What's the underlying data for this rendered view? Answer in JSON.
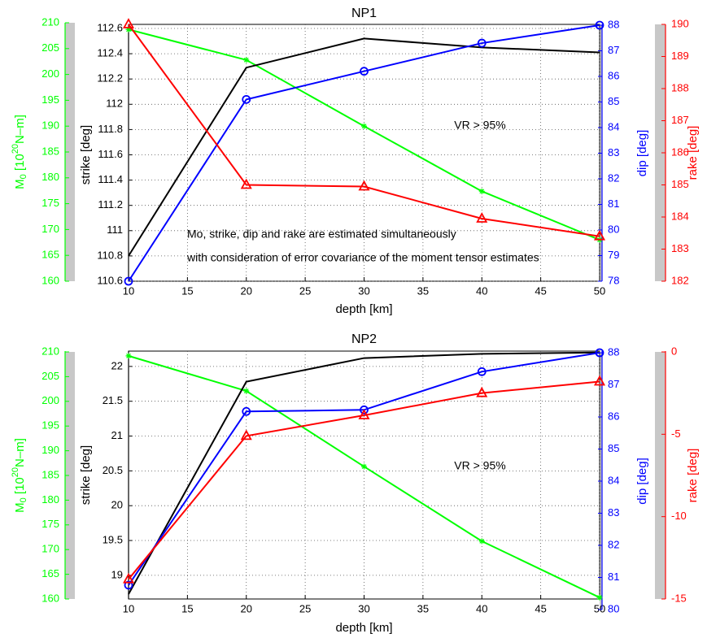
{
  "chart_data": [
    {
      "type": "line",
      "title": "NP1",
      "xlabel": "depth [km]",
      "x": [
        10,
        20,
        30,
        40,
        50
      ],
      "xlim": [
        10,
        50
      ],
      "xticks": [
        10,
        15,
        20,
        25,
        30,
        35,
        40,
        45,
        50
      ],
      "grid": true,
      "axes": [
        {
          "label": {
            "base": "M",
            "sub": "0",
            "mid": " [10",
            "sup": "20",
            "end": "N–m]"
          },
          "color": "#00ff00",
          "ylim": [
            160,
            210
          ],
          "yticks": [
            160,
            165,
            170,
            175,
            180,
            185,
            190,
            195,
            200,
            205,
            210
          ]
        },
        {
          "label": "strike [deg]",
          "color": "#000000",
          "ylim": [
            110.6,
            112.6
          ],
          "yticks": [
            110.6,
            110.8,
            111,
            111.2,
            111.4,
            111.6,
            111.8,
            112,
            112.2,
            112.4,
            112.6
          ]
        },
        {
          "label": "dip [deg]",
          "color": "#0000ff",
          "ylim": [
            78,
            88
          ],
          "yticks": [
            78,
            79,
            80,
            81,
            82,
            83,
            84,
            85,
            86,
            87,
            88
          ]
        },
        {
          "label": "rake [deg]",
          "color": "#ff0000",
          "ylim": [
            182,
            190
          ],
          "yticks": [
            182,
            183,
            184,
            185,
            186,
            187,
            188,
            189,
            190
          ]
        }
      ],
      "series": [
        {
          "axis": 0,
          "color": "#00ff00",
          "marker": "star",
          "values": [
            208.7,
            202.8,
            190.0,
            177.4,
            168.0
          ]
        },
        {
          "axis": 1,
          "color": "#000000",
          "marker": "none",
          "values": [
            110.8,
            112.29,
            112.52,
            112.45,
            112.41
          ]
        },
        {
          "axis": 2,
          "color": "#0000ff",
          "marker": "circle",
          "values": [
            78.0,
            85.1,
            86.2,
            87.3,
            88.0
          ]
        },
        {
          "axis": 3,
          "color": "#ff0000",
          "marker": "triangle",
          "values": [
            190.0,
            185.0,
            184.95,
            183.95,
            183.4
          ]
        }
      ],
      "annotations": [
        "VR > 95%",
        "Mo, strike, dip and rake are estimated simultaneously",
        "with consideration of error covariance of the moment tensor estimates"
      ]
    },
    {
      "type": "line",
      "title": "NP2",
      "xlabel": "depth [km]",
      "x": [
        10,
        20,
        30,
        40,
        50
      ],
      "xlim": [
        10,
        50
      ],
      "xticks": [
        10,
        15,
        20,
        25,
        30,
        35,
        40,
        45,
        50
      ],
      "grid": true,
      "axes": [
        {
          "label": {
            "base": "M",
            "sub": "0",
            "mid": " [10",
            "sup": "20",
            "end": "N–m]"
          },
          "color": "#00ff00",
          "ylim": [
            160,
            210
          ],
          "yticks": [
            160,
            165,
            170,
            175,
            180,
            185,
            190,
            195,
            200,
            205,
            210
          ]
        },
        {
          "label": "strike [deg]",
          "color": "#000000",
          "ylim": [
            18.66,
            22.22
          ],
          "yticks": [
            19,
            19.5,
            20,
            20.5,
            21,
            21.5,
            22
          ]
        },
        {
          "label": "dip [deg]",
          "color": "#0000ff",
          "ylim": [
            80,
            88
          ],
          "yticks": [
            80,
            81,
            82,
            83,
            84,
            85,
            86,
            87,
            88
          ]
        },
        {
          "label": "rake [deg]",
          "color": "#ff0000",
          "ylim": [
            -15,
            0
          ],
          "yticks": [
            -15,
            -10,
            -5,
            0
          ]
        }
      ],
      "series": [
        {
          "axis": 0,
          "color": "#00ff00",
          "marker": "star",
          "values": [
            209.2,
            202.1,
            186.8,
            171.7,
            160.3
          ]
        },
        {
          "axis": 1,
          "color": "#000000",
          "marker": "none",
          "values": [
            18.73,
            21.78,
            22.12,
            22.18,
            22.2
          ]
        },
        {
          "axis": 2,
          "color": "#0000ff",
          "marker": "circle",
          "values": [
            80.76,
            86.17,
            86.22,
            87.41,
            88.0
          ]
        },
        {
          "axis": 3,
          "color": "#ff0000",
          "marker": "triangle",
          "values": [
            -13.8,
            -5.1,
            -3.85,
            -2.5,
            -1.8
          ]
        }
      ],
      "annotations": [
        "VR > 95%"
      ]
    }
  ]
}
